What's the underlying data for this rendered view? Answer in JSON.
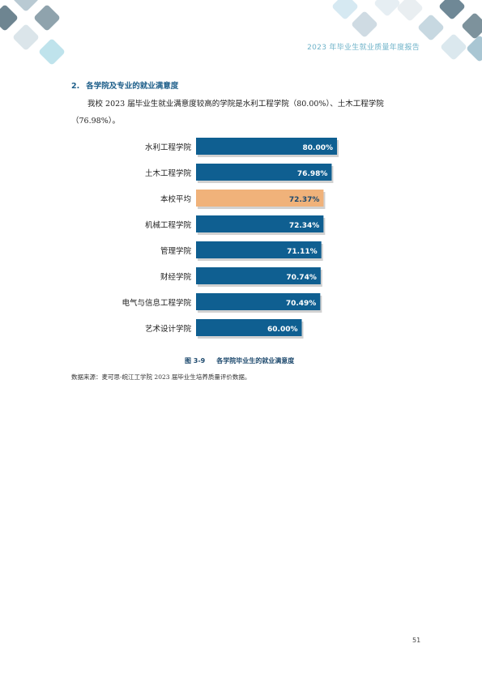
{
  "header": {
    "title": "2023 年毕业生就业质量年度报告"
  },
  "section": {
    "number": "2.",
    "title": "各学院及专业的就业满意度",
    "body": "我校 2023 届毕业生就业满意度较高的学院是水利工程学院（80.00%）、土木工程学院（76.98%）。"
  },
  "chart_data": {
    "type": "bar",
    "orientation": "horizontal",
    "categories": [
      "水利工程学院",
      "土木工程学院",
      "本校平均",
      "机械工程学院",
      "管理学院",
      "财经学院",
      "电气与信息工程学院",
      "艺术设计学院"
    ],
    "values": [
      80.0,
      76.98,
      72.37,
      72.34,
      71.11,
      70.74,
      70.49,
      60.0
    ],
    "labels": [
      "80.00%",
      "76.98%",
      "72.37%",
      "72.34%",
      "71.11%",
      "70.74%",
      "70.49%",
      "60.00%"
    ],
    "highlight": "本校平均",
    "colors": {
      "bar": "#0f5f91",
      "highlight": "#f0b27a",
      "label": "#ffffff",
      "highlight_label": "#1e4a6e"
    }
  },
  "caption": {
    "figure": "图 3-9",
    "title": "各学院毕业生的就业满意度"
  },
  "source": "数据来源：麦可思-皖江工学院 2023 届毕业生培养质量评价数据。",
  "page_number": "51"
}
